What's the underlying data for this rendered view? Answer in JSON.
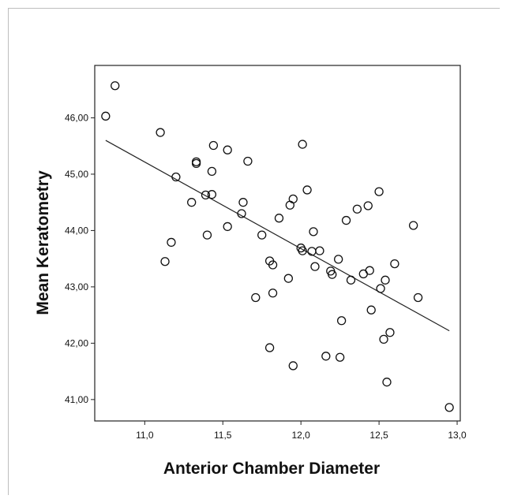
{
  "chart_data": {
    "type": "scatter",
    "xlabel": "Anterior Chamber Diameter",
    "ylabel": "Mean Keratometry",
    "xlim": [
      10.68,
      13.02
    ],
    "ylim": [
      40.62,
      46.93
    ],
    "xticks": [
      "11,0",
      "11,5",
      "12,0",
      "12,5",
      "13,0"
    ],
    "xtick_values": [
      11.0,
      11.5,
      12.0,
      12.5,
      13.0
    ],
    "yticks": [
      "41,00",
      "42,00",
      "43,00",
      "44,00",
      "45,00",
      "46,00"
    ],
    "ytick_values": [
      41,
      42,
      43,
      44,
      45,
      46
    ],
    "grid": false,
    "fit_line": {
      "x": [
        10.75,
        12.95
      ],
      "y": [
        45.6,
        42.22
      ]
    },
    "points": [
      [
        10.75,
        46.03
      ],
      [
        10.81,
        46.57
      ],
      [
        11.1,
        45.74
      ],
      [
        11.13,
        43.45
      ],
      [
        11.17,
        43.79
      ],
      [
        11.2,
        44.95
      ],
      [
        11.3,
        44.5
      ],
      [
        11.33,
        45.22
      ],
      [
        11.33,
        45.19
      ],
      [
        11.39,
        44.63
      ],
      [
        11.4,
        43.92
      ],
      [
        11.43,
        44.64
      ],
      [
        11.43,
        45.05
      ],
      [
        11.44,
        45.51
      ],
      [
        11.53,
        45.43
      ],
      [
        11.53,
        44.07
      ],
      [
        11.62,
        44.3
      ],
      [
        11.63,
        44.5
      ],
      [
        11.66,
        45.23
      ],
      [
        11.71,
        42.81
      ],
      [
        11.75,
        43.92
      ],
      [
        11.8,
        43.46
      ],
      [
        11.8,
        41.92
      ],
      [
        11.82,
        43.39
      ],
      [
        11.82,
        42.89
      ],
      [
        11.86,
        44.22
      ],
      [
        11.92,
        43.15
      ],
      [
        11.93,
        44.45
      ],
      [
        11.95,
        44.56
      ],
      [
        11.95,
        41.6
      ],
      [
        12.0,
        43.69
      ],
      [
        12.01,
        43.64
      ],
      [
        12.01,
        45.53
      ],
      [
        12.04,
        44.72
      ],
      [
        12.07,
        43.63
      ],
      [
        12.08,
        43.98
      ],
      [
        12.09,
        43.36
      ],
      [
        12.12,
        43.64
      ],
      [
        12.16,
        41.77
      ],
      [
        12.19,
        43.28
      ],
      [
        12.2,
        43.22
      ],
      [
        12.24,
        43.49
      ],
      [
        12.25,
        41.75
      ],
      [
        12.26,
        42.4
      ],
      [
        12.29,
        44.18
      ],
      [
        12.32,
        43.12
      ],
      [
        12.36,
        44.38
      ],
      [
        12.4,
        43.23
      ],
      [
        12.43,
        44.44
      ],
      [
        12.44,
        43.29
      ],
      [
        12.45,
        42.59
      ],
      [
        12.5,
        44.69
      ],
      [
        12.51,
        42.97
      ],
      [
        12.53,
        42.07
      ],
      [
        12.54,
        43.12
      ],
      [
        12.55,
        41.31
      ],
      [
        12.57,
        42.19
      ],
      [
        12.6,
        43.41
      ],
      [
        12.72,
        44.09
      ],
      [
        12.75,
        42.81
      ],
      [
        12.95,
        40.86
      ]
    ]
  }
}
